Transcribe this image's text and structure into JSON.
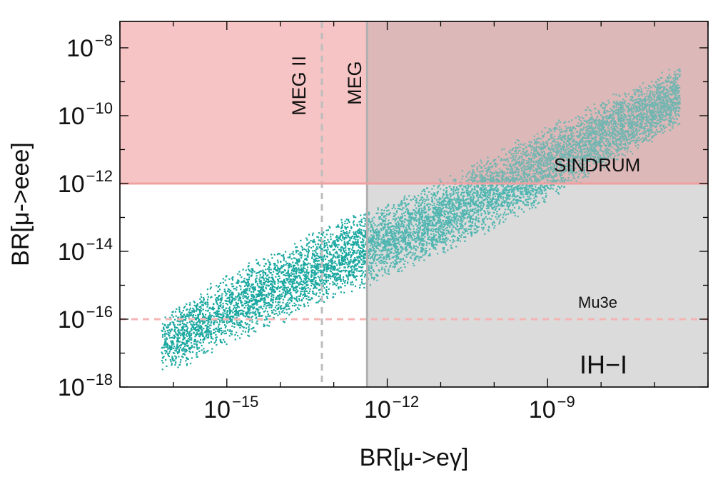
{
  "chart_data": {
    "type": "scatter",
    "title": "",
    "xlabel": "BR[μ->eγ]",
    "ylabel": "BR[μ->eee]",
    "x_scale": "log",
    "y_scale": "log",
    "xlim": [
      1e-17,
      1e-06
    ],
    "ylim": [
      1e-18,
      6e-08
    ],
    "x_ticks": [
      {
        "value": 1e-15,
        "base": "10",
        "exp": "−15"
      },
      {
        "value": 1e-12,
        "base": "10",
        "exp": "−12"
      },
      {
        "value": 1e-09,
        "base": "10",
        "exp": "−9"
      }
    ],
    "y_ticks": [
      {
        "value": 1e-08,
        "base": "10",
        "exp": "−8"
      },
      {
        "value": 1e-10,
        "base": "10",
        "exp": "−10"
      },
      {
        "value": 1e-12,
        "base": "10",
        "exp": "−12"
      },
      {
        "value": 1e-14,
        "base": "10",
        "exp": "−14"
      },
      {
        "value": 1e-16,
        "base": "10",
        "exp": "−16"
      },
      {
        "value": 1e-18,
        "base": "10",
        "exp": "−18"
      }
    ],
    "regions": [
      {
        "name": "SINDRUM excluded",
        "y_min": 1e-12,
        "color": "#f8c8c8"
      },
      {
        "name": "MEG excluded",
        "x_min": 4.2e-13,
        "color": "#dcdcdc"
      }
    ],
    "limits": [
      {
        "label": "MEG II",
        "axis": "x",
        "value": 6e-14,
        "style": "dashed",
        "color": "#bdbdbd"
      },
      {
        "label": "MEG",
        "axis": "x",
        "value": 4.2e-13,
        "style": "solid",
        "color": "#b0b0b0"
      },
      {
        "label": "SINDRUM",
        "axis": "y",
        "value": 1e-12,
        "style": "solid",
        "color": "#f0a0a0"
      },
      {
        "label": "Mu3e",
        "axis": "y",
        "value": 1e-16,
        "style": "dashed",
        "color": "#f4b4b4"
      }
    ],
    "scatter_envelope": {
      "x_min": 6e-17,
      "x_max": 3e-07,
      "lower_edge": [
        [
          1.3e-16,
          2e-18
        ],
        [
          1e-13,
          2e-16
        ],
        [
          1e-11,
          4e-15
        ],
        [
          1e-09,
          1.6e-13
        ],
        [
          3e-07,
          3e-11
        ]
      ],
      "upper_edge": [
        [
          6e-17,
          2e-16
        ],
        [
          1e-15,
          4e-15
        ],
        [
          1e-13,
          1.3e-13
        ],
        [
          1e-11,
          2.5e-12
        ],
        [
          1e-09,
          1e-10
        ],
        [
          3e-07,
          5e-09
        ]
      ]
    },
    "series_color": "#1aa7a0",
    "grid": false,
    "legend": "none",
    "annotations": [
      "MEG II",
      "MEG",
      "SINDRUM",
      "Mu3e",
      "IH−I"
    ]
  },
  "colors": {
    "scatter": "#1aa7a0",
    "sindrum_region": "#f8c8c8",
    "meg_region": "#dcdcdc",
    "axis": "#000000"
  }
}
